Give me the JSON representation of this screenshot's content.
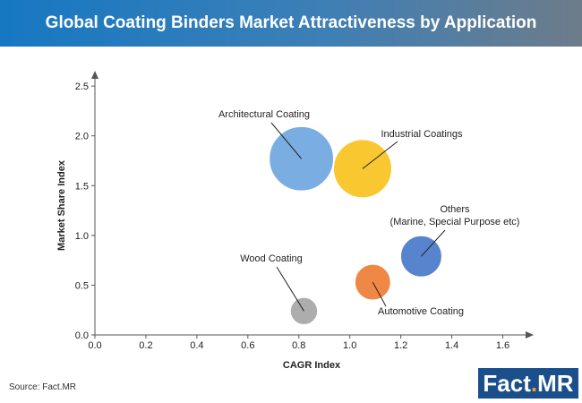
{
  "header": {
    "title": "Global Coating Binders Market Attractiveness by Application"
  },
  "footer": {
    "source": "Source: Fact.MR"
  },
  "logo": {
    "text_main": "Fact",
    "text_dot": ".",
    "text_tail": "MR"
  },
  "chart_data": {
    "type": "bubble",
    "title": "Global Coating Binders Market Attractiveness by Application",
    "xlabel": "CAGR Index",
    "ylabel": "Market Share Index",
    "xlim": [
      0,
      1.7
    ],
    "ylim": [
      0,
      2.6
    ],
    "xticks": [
      0.0,
      0.2,
      0.4,
      0.6,
      0.8,
      1.0,
      1.2,
      1.4,
      1.6
    ],
    "yticks": [
      0.0,
      0.5,
      1.0,
      1.5,
      2.0,
      2.5
    ],
    "xtick_labels": [
      "0.0",
      "0.2",
      "0.4",
      "0.6",
      "0.8",
      "1.0",
      "1.2",
      "1.4",
      "1.6"
    ],
    "ytick_labels": [
      "0.0",
      "0.5",
      "1.0",
      "1.5",
      "2.0",
      "2.5"
    ],
    "grid": false,
    "legend": "none",
    "series": [
      {
        "label": "Architectural Coating",
        "x": 0.81,
        "y": 1.77,
        "size": 1.0,
        "color": "#6fa7df"
      },
      {
        "label": "Industrial Coatings",
        "x": 1.05,
        "y": 1.67,
        "size": 0.82,
        "color": "#f9c31e"
      },
      {
        "label": "Others\n(Marine, Special Purpose etc)",
        "x": 1.28,
        "y": 0.79,
        "size": 0.41,
        "color": "#4a78c9"
      },
      {
        "label": "Automotive Coating",
        "x": 1.09,
        "y": 0.53,
        "size": 0.31,
        "color": "#ee7d35"
      },
      {
        "label": "Wood Coating",
        "x": 0.82,
        "y": 0.24,
        "size": 0.18,
        "color": "#a6a6a6"
      }
    ]
  }
}
